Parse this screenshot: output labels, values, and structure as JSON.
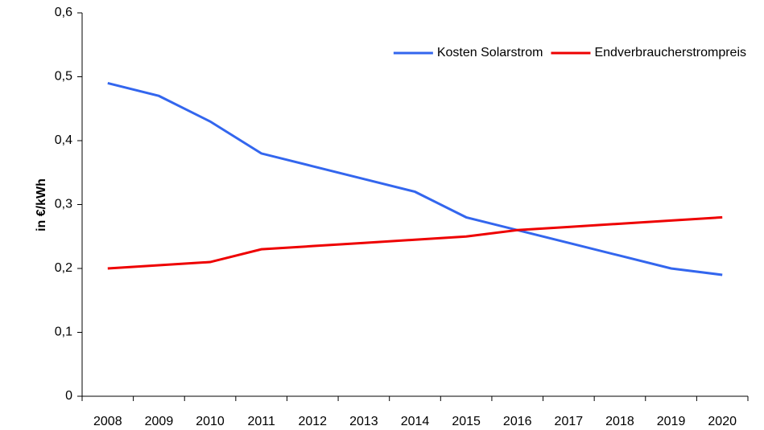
{
  "chart_data": {
    "type": "line",
    "y_label": "in €/kWh",
    "categories": [
      "2008",
      "2009",
      "2010",
      "2011",
      "2012",
      "2013",
      "2014",
      "2015",
      "2016",
      "2017",
      "2018",
      "2019",
      "2020"
    ],
    "series": [
      {
        "name": "Kosten Solarstrom",
        "color": "#3366ee",
        "values": [
          0.49,
          0.47,
          0.43,
          0.38,
          0.36,
          0.34,
          0.32,
          0.28,
          0.26,
          0.24,
          0.22,
          0.2,
          0.19
        ]
      },
      {
        "name": "Endverbraucherstrompreis",
        "color": "#ee0000",
        "values": [
          0.2,
          0.205,
          0.21,
          0.23,
          0.235,
          0.24,
          0.245,
          0.25,
          0.26,
          0.265,
          0.27,
          0.275,
          0.28
        ]
      }
    ],
    "ylim": [
      0,
      0.6
    ],
    "yticks": [
      0,
      {
        "value": 0.1,
        "label": "0,1"
      },
      {
        "value": 0.2,
        "label": "0,2"
      },
      {
        "value": 0.3,
        "label": "0,3"
      },
      {
        "value": 0.4,
        "label": "0,4"
      },
      {
        "value": 0.5,
        "label": "0,5"
      },
      {
        "value": 0.6,
        "label": "0,6"
      }
    ],
    "legend": "top-right",
    "grid": false
  }
}
